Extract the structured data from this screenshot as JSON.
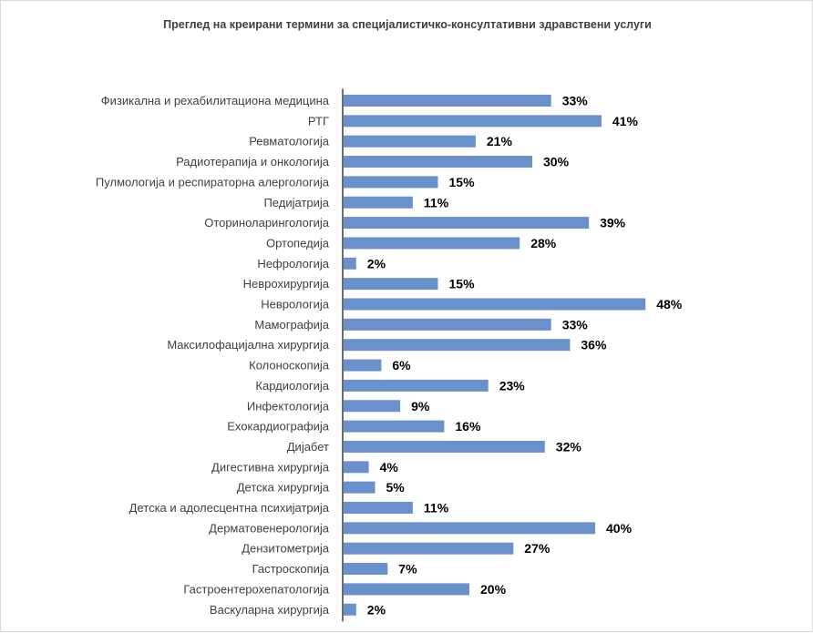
{
  "chart_data": {
    "type": "bar",
    "orientation": "horizontal",
    "title": "Преглед на креирани термини за специјалистичко-консултативни здравствени услуги",
    "xlabel": "",
    "ylabel": "",
    "xlim": [
      0,
      50
    ],
    "grid": false,
    "legend": "none",
    "value_suffix": "%",
    "bar_color": "#6a91cc",
    "axis_color": "#404040",
    "categories": [
      "Физикална и рехабилитациона медицина",
      "РТГ",
      "Ревматологија",
      "Радиотерапија и онкологија",
      "Пулмологија и респираторна алергологија",
      "Педијатрија",
      "Оториноларингологија",
      "Ортопедија",
      "Нефрологија",
      "Неврохирургија",
      "Неврологија",
      "Мамографија",
      "Максилофацијална хирургија",
      "Колоноскопија",
      "Кардиологија",
      "Инфектологија",
      "Ехокардиографија",
      "Дијабет",
      "Дигестивна хирургија",
      "Детска хирургија",
      "Детска и адолесцентна психијатрија",
      "Дерматовенерологија",
      "Дензитометрија",
      "Гастроскопија",
      "Гастроентерохепатологија",
      "Васкуларна хирургија"
    ],
    "values": [
      33,
      41,
      21,
      30,
      15,
      11,
      39,
      28,
      2,
      15,
      48,
      33,
      36,
      6,
      23,
      9,
      16,
      32,
      4,
      5,
      11,
      40,
      27,
      7,
      20,
      2
    ],
    "data_labels": [
      "33%",
      "41%",
      "21%",
      "30%",
      "15%",
      "11%",
      "39%",
      "28%",
      "2%",
      "15%",
      "48%",
      "33%",
      "36%",
      "6%",
      "23%",
      "9%",
      "16%",
      "32%",
      "4%",
      "5%",
      "11%",
      "40%",
      "27%",
      "7%",
      "20%",
      "2%"
    ]
  }
}
